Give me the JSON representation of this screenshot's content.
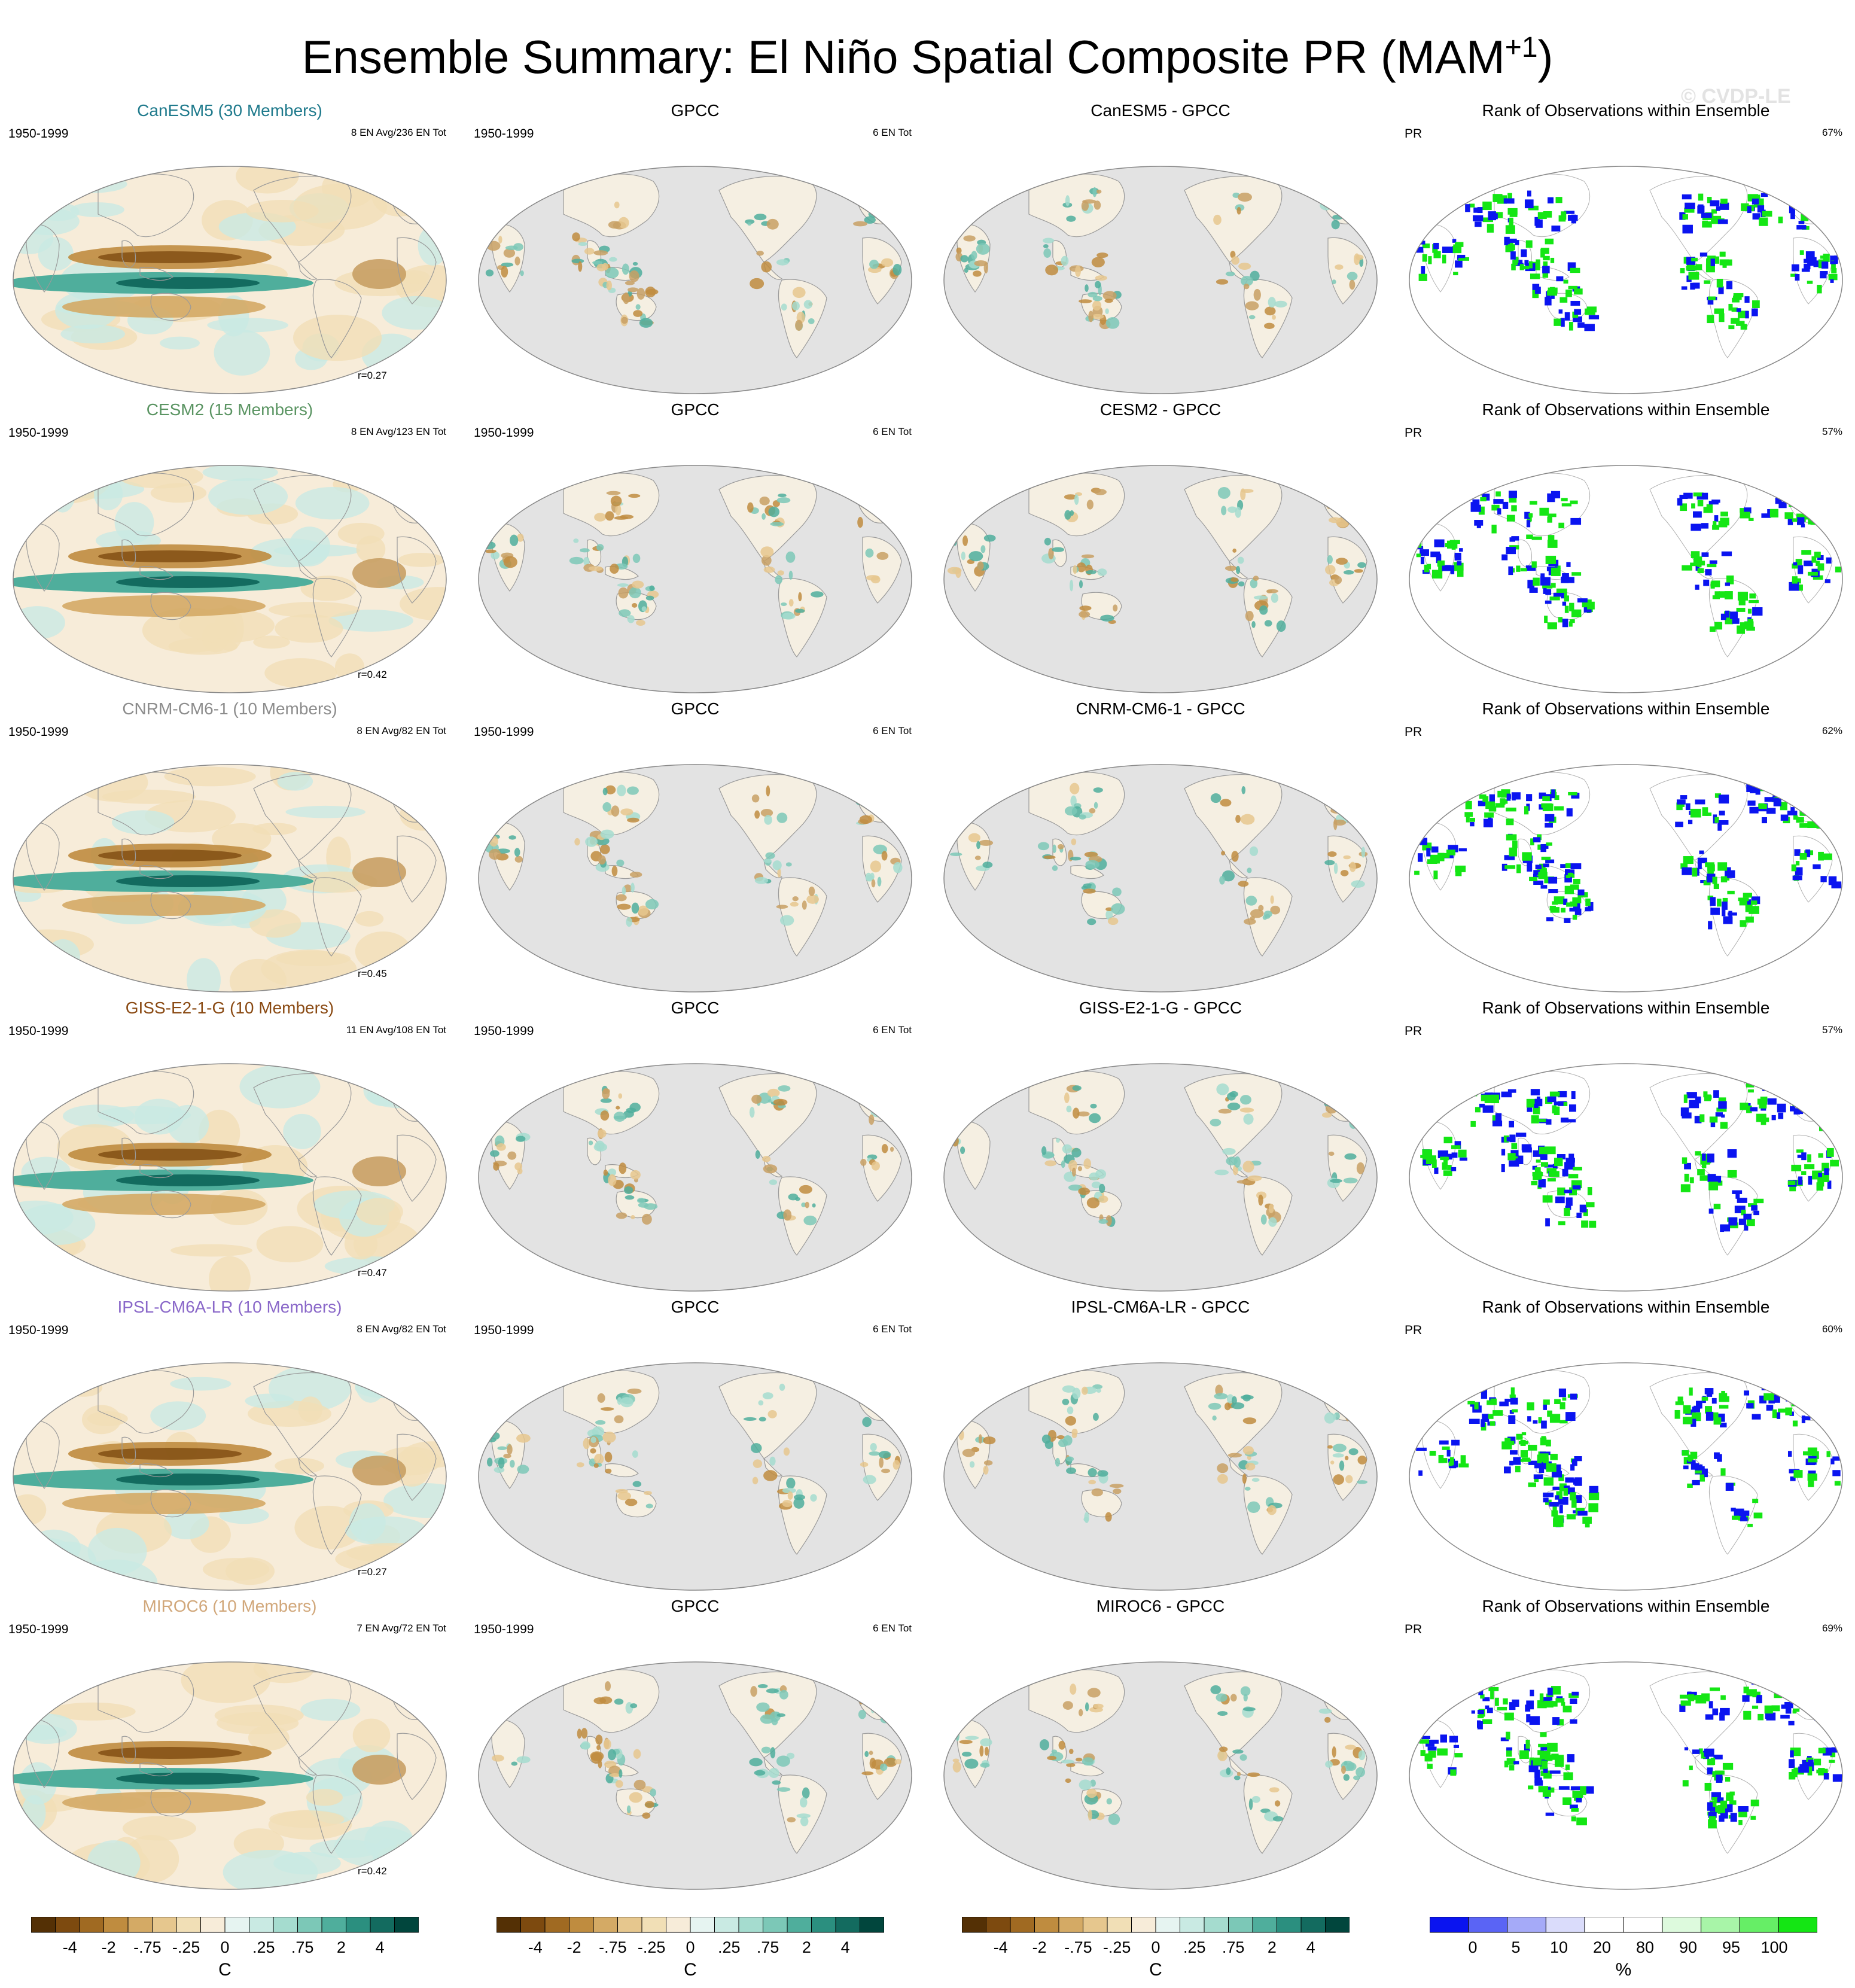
{
  "figure": {
    "title_main": "Ensemble Summary: El Niño Spatial Composite PR (MAM",
    "title_sup": "+1",
    "title_end": ")",
    "watermark": "© CVDP-LE"
  },
  "rows": [
    {
      "model_title": "CanESM5 (30 Members)",
      "model_color": "#1f7a8c",
      "period": "1950-1999",
      "en_info": "8 EN Avg/236 EN Tot",
      "corr": "r=0.27",
      "obs_title": "GPCC",
      "obs_period": "1950-1999",
      "obs_info": "6 EN Tot",
      "diff_title": "CanESM5 - GPCC",
      "rank_title": "Rank of Observations within Ensemble",
      "rank_var": "PR",
      "rank_pct": "67%"
    },
    {
      "model_title": "CESM2 (15 Members)",
      "model_color": "#5a9462",
      "period": "1950-1999",
      "en_info": "8 EN Avg/123 EN Tot",
      "corr": "r=0.42",
      "obs_title": "GPCC",
      "obs_period": "1950-1999",
      "obs_info": "6 EN Tot",
      "diff_title": "CESM2 - GPCC",
      "rank_title": "Rank of Observations within Ensemble",
      "rank_var": "PR",
      "rank_pct": "57%"
    },
    {
      "model_title": "CNRM-CM6-1 (10 Members)",
      "model_color": "#8c8c8c",
      "period": "1950-1999",
      "en_info": "8 EN Avg/82 EN Tot",
      "corr": "r=0.45",
      "obs_title": "GPCC",
      "obs_period": "1950-1999",
      "obs_info": "6 EN Tot",
      "diff_title": "CNRM-CM6-1 - GPCC",
      "rank_title": "Rank of Observations within Ensemble",
      "rank_var": "PR",
      "rank_pct": "62%"
    },
    {
      "model_title": "GISS-E2-1-G (10 Members)",
      "model_color": "#8a4a13",
      "period": "1950-1999",
      "en_info": "11 EN Avg/108 EN Tot",
      "corr": "r=0.47",
      "obs_title": "GPCC",
      "obs_period": "1950-1999",
      "obs_info": "6 EN Tot",
      "diff_title": "GISS-E2-1-G - GPCC",
      "rank_title": "Rank of Observations within Ensemble",
      "rank_var": "PR",
      "rank_pct": "57%"
    },
    {
      "model_title": "IPSL-CM6A-LR (10 Members)",
      "model_color": "#8a68c9",
      "period": "1950-1999",
      "en_info": "8 EN Avg/82 EN Tot",
      "corr": "r=0.27",
      "obs_title": "GPCC",
      "obs_period": "1950-1999",
      "obs_info": "6 EN Tot",
      "diff_title": "IPSL-CM6A-LR - GPCC",
      "rank_title": "Rank of Observations within Ensemble",
      "rank_var": "PR",
      "rank_pct": "60%"
    },
    {
      "model_title": "MIROC6 (10 Members)",
      "model_color": "#d1a77a",
      "period": "1950-1999",
      "en_info": "7 EN Avg/72 EN Tot",
      "corr": "r=0.42",
      "obs_title": "GPCC",
      "obs_period": "1950-1999",
      "obs_info": "6 EN Tot",
      "diff_title": "MIROC6 - GPCC",
      "rank_title": "Rank of Observations within Ensemble",
      "rank_var": "PR",
      "rank_pct": "69%"
    }
  ],
  "colorbars": {
    "anomaly": {
      "ticks": [
        "-4",
        "-2",
        "-.75",
        "-.25",
        "0",
        ".25",
        ".75",
        "2",
        "4"
      ],
      "unit": "C",
      "colors": [
        "#543005",
        "#7d4a0f",
        "#a06a22",
        "#bf8c3f",
        "#d4aa65",
        "#e6c78e",
        "#f1dfb6",
        "#f7ecd9",
        "#e6f4f1",
        "#c9eae3",
        "#a5dccf",
        "#7cc8b7",
        "#4fae9c",
        "#2b8f7f",
        "#136b5f",
        "#01463d"
      ]
    },
    "rank": {
      "ticks": [
        "0",
        "5",
        "10",
        "20",
        "80",
        "90",
        "95",
        "100"
      ],
      "unit": "%",
      "colors": [
        "#0a14f0",
        "#5a64f5",
        "#a5aaf8",
        "#dadcfb",
        "#ffffff",
        "#ffffff",
        "#ddfadd",
        "#a8f5a8",
        "#66ee66",
        "#14e614"
      ]
    }
  },
  "maps": {
    "ocean_gray": "#e3e3e3",
    "land_line": "#9a9a9a",
    "dry": "#c8a064",
    "wet": "#4fae9c",
    "deep_wet": "#0b5a50",
    "rank_low": "#0a14f0",
    "rank_high": "#14e614"
  }
}
